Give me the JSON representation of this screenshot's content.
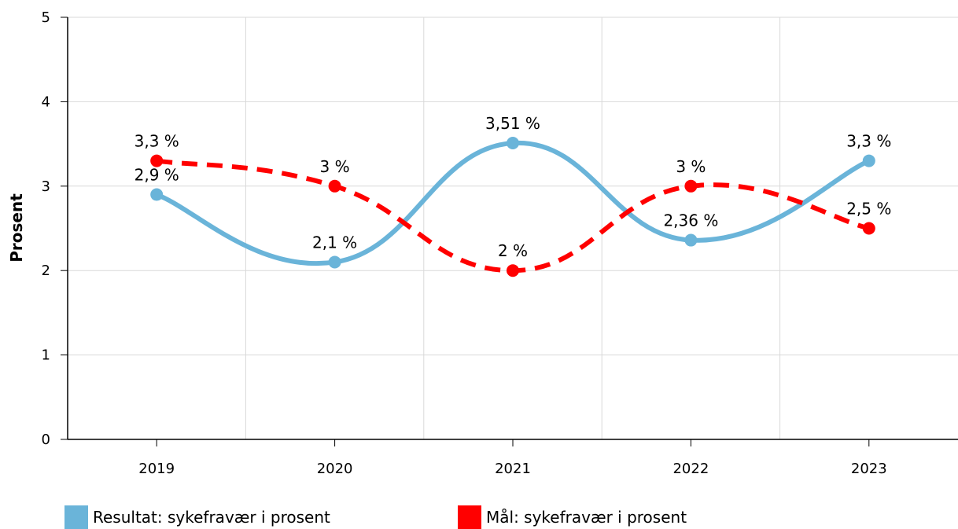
{
  "chart_data": {
    "type": "line",
    "categories": [
      "2019",
      "2020",
      "2021",
      "2022",
      "2023"
    ],
    "ylabel": "Prosent",
    "ylim": [
      0,
      5
    ],
    "yticks": [
      "0",
      "1",
      "2",
      "3",
      "4",
      "5"
    ],
    "grid": true,
    "legend_position": "bottom-left",
    "series": [
      {
        "name": "Resultat: sykefravær i prosent",
        "values": [
          2.9,
          2.1,
          3.51,
          2.36,
          3.3
        ],
        "labels": [
          "2,9 %",
          "2,1 %",
          "3,51 %",
          "2,36 %",
          "3,3 %"
        ],
        "color": "#6ab4d9",
        "style": "solid-smooth"
      },
      {
        "name": "Mål: sykefravær i prosent",
        "values": [
          3.3,
          3.0,
          2.0,
          3.0,
          2.5
        ],
        "labels": [
          "3,3 %",
          "3 %",
          "2 %",
          "3 %",
          "2,5 %"
        ],
        "color": "#ff0000",
        "style": "dashed-smooth"
      }
    ]
  }
}
